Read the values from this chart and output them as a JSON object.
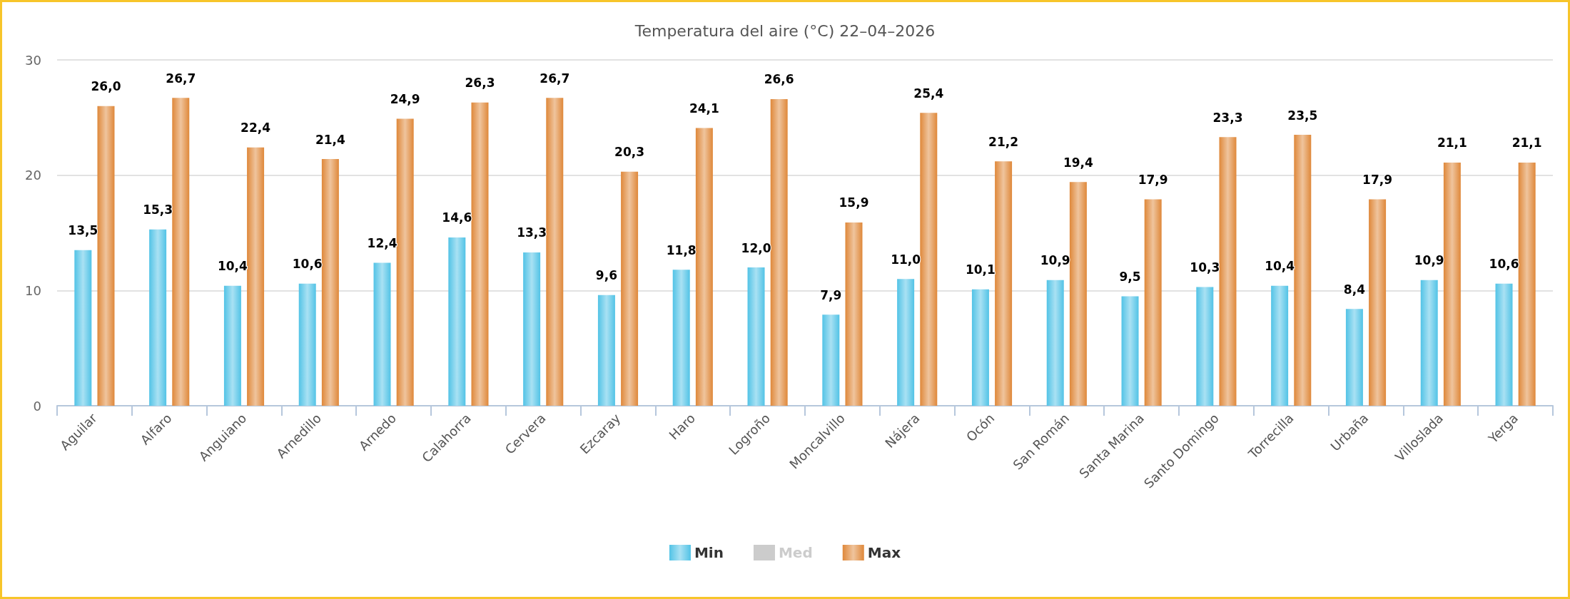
{
  "chart_data": {
    "type": "bar",
    "title": "Temperatura del aire (°C) 22–04–2026",
    "categories": [
      "Aguilar",
      "Alfaro",
      "Anguiano",
      "Arnedillo",
      "Arnedo",
      "Calahorra",
      "Cervera",
      "Ezcaray",
      "Haro",
      "Logroño",
      "Moncalvillo",
      "Nájera",
      "Ocón",
      "San Román",
      "Santa Marina",
      "Santo Domingo",
      "Torrecilla",
      "Urbaña",
      "Villoslada",
      "Yerga"
    ],
    "series": [
      {
        "name": "Min",
        "color": "#52c3e6",
        "values": [
          13.5,
          15.3,
          10.4,
          10.6,
          12.4,
          14.6,
          13.3,
          9.6,
          11.8,
          12.0,
          7.9,
          11.0,
          10.1,
          10.9,
          9.5,
          10.3,
          10.4,
          8.4,
          10.9,
          10.6
        ],
        "value_labels": [
          "13,5",
          "15,3",
          "10,4",
          "10,6",
          "12,4",
          "14,6",
          "13,3",
          "9,6",
          "11,8",
          "12,0",
          "7,9",
          "11,0",
          "10,1",
          "10,9",
          "9,5",
          "10,3",
          "10,4",
          "8,4",
          "10,9",
          "10,6"
        ]
      },
      {
        "name": "Med",
        "values": [
          null,
          null,
          null,
          null,
          null,
          null,
          null,
          null,
          null,
          null,
          null,
          null,
          null,
          null,
          null,
          null,
          null,
          null,
          null,
          null
        ]
      },
      {
        "name": "Max",
        "color": "#df883a",
        "values": [
          26.0,
          26.7,
          22.4,
          21.4,
          24.9,
          26.3,
          26.7,
          20.3,
          24.1,
          26.6,
          15.9,
          25.4,
          21.2,
          19.4,
          17.9,
          23.3,
          23.5,
          17.9,
          21.1,
          21.1
        ],
        "value_labels": [
          "26,0",
          "26,7",
          "22,4",
          "21,4",
          "24,9",
          "26,3",
          "26,7",
          "20,3",
          "24,1",
          "26,6",
          "15,9",
          "25,4",
          "21,2",
          "19,4",
          "17,9",
          "23,3",
          "23,5",
          "17,9",
          "21,1",
          "21,1"
        ]
      }
    ],
    "ylim": [
      0,
      30
    ],
    "yticks": [
      0,
      10,
      20,
      30
    ],
    "grid": "y",
    "legend": "bottom"
  }
}
